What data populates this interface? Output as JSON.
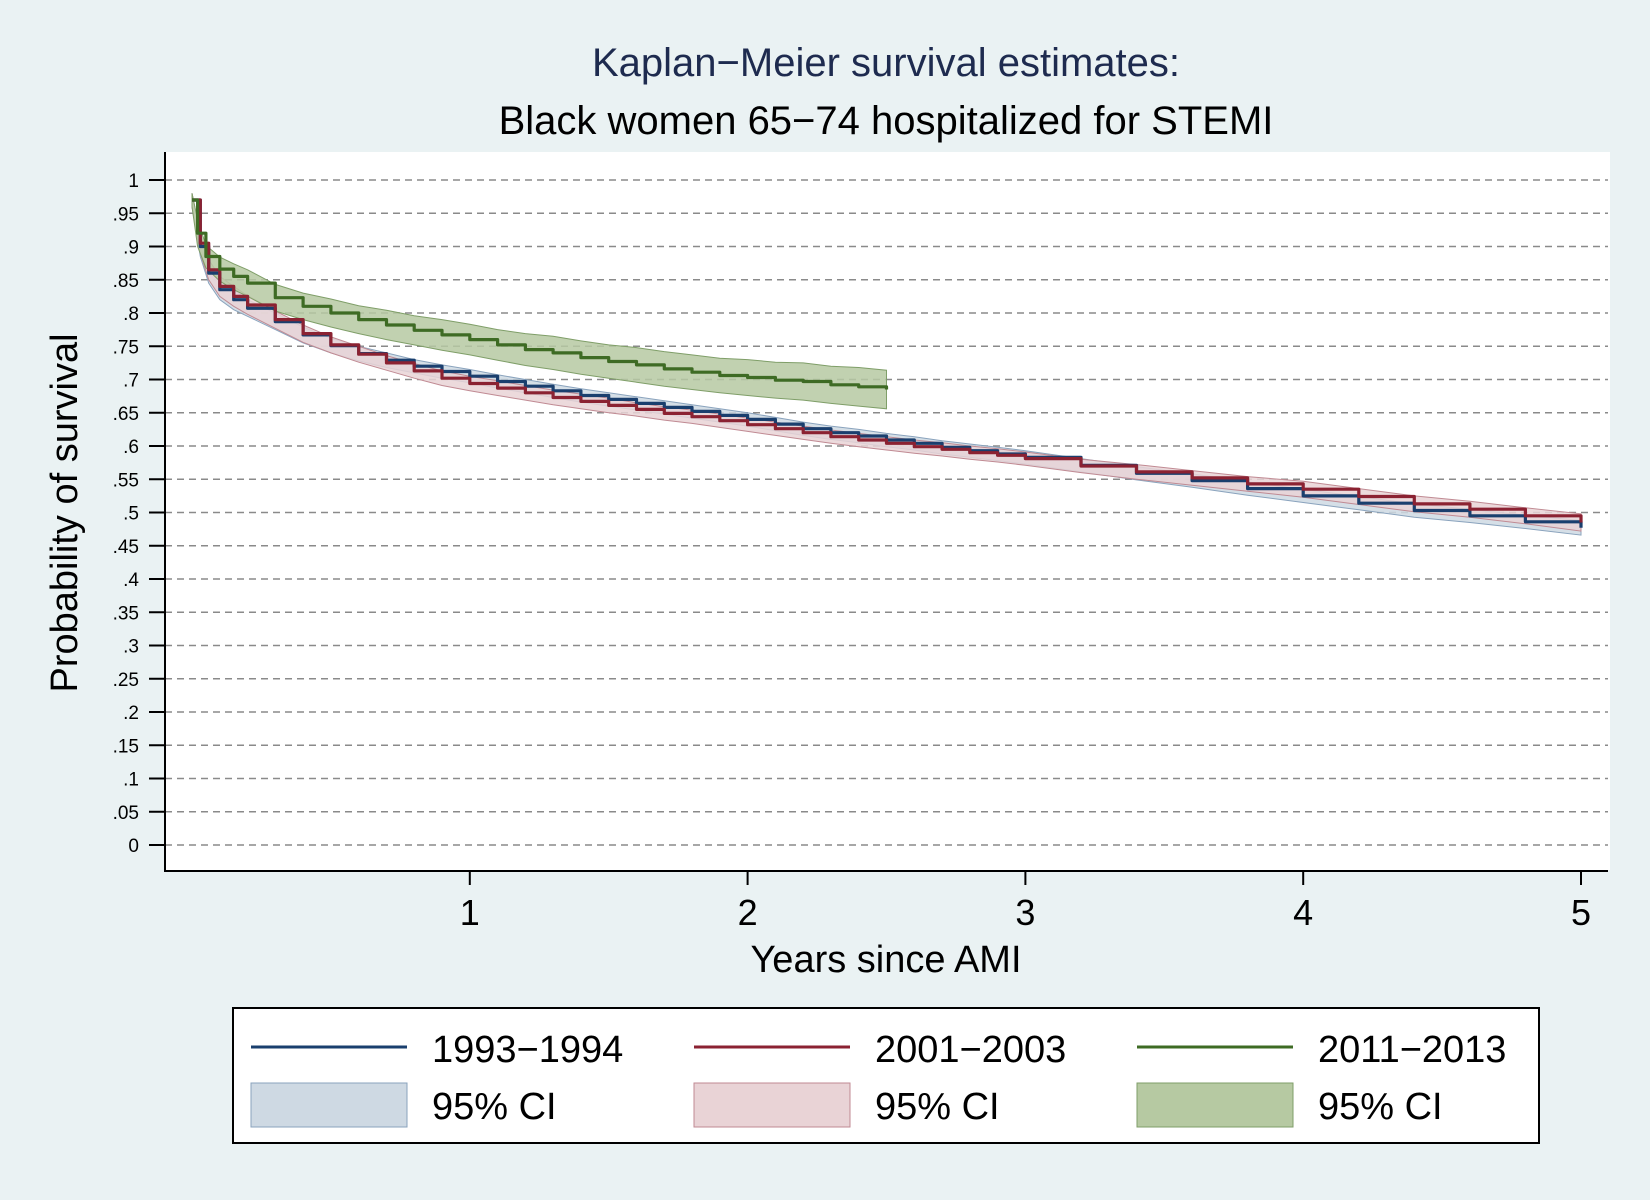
{
  "chart_data": {
    "type": "line",
    "title": "Kaplan−Meier survival estimates:",
    "subtitle": "Black women 65−74 hospitalized for STEMI",
    "xlabel": "Years since AMI",
    "ylabel": "Probability of survival",
    "xlim": [
      0,
      5
    ],
    "ylim": [
      0,
      1
    ],
    "x_ticks": [
      "1",
      "2",
      "3",
      "4",
      "5"
    ],
    "x_tick_values": [
      1,
      2,
      3,
      4,
      5
    ],
    "y_ticks": [
      "0",
      ".05",
      ".1",
      ".15",
      ".2",
      ".25",
      ".3",
      ".35",
      ".4",
      ".45",
      ".5",
      ".55",
      ".6",
      ".65",
      ".7",
      ".75",
      ".8",
      ".85",
      ".9",
      ".95",
      "1"
    ],
    "y_tick_values": [
      0,
      0.05,
      0.1,
      0.15,
      0.2,
      0.25,
      0.3,
      0.35,
      0.4,
      0.45,
      0.5,
      0.55,
      0.6,
      0.65,
      0.7,
      0.75,
      0.8,
      0.85,
      0.9,
      0.95,
      1
    ],
    "grid": "horizontal dashed",
    "legend_position": "bottom",
    "series": [
      {
        "name": "1993−1994",
        "color": "#1a3f6e",
        "ci_fill": "#ced9e3",
        "ci_stroke": "#8aa3bd",
        "x": [
          0.0,
          0.03,
          0.06,
          0.1,
          0.15,
          0.2,
          0.3,
          0.4,
          0.5,
          0.6,
          0.7,
          0.8,
          0.9,
          1.0,
          1.1,
          1.2,
          1.3,
          1.4,
          1.5,
          1.6,
          1.7,
          1.8,
          1.9,
          2.0,
          2.1,
          2.2,
          2.3,
          2.4,
          2.5,
          2.6,
          2.7,
          2.8,
          2.9,
          3.0,
          3.2,
          3.4,
          3.6,
          3.8,
          4.0,
          4.2,
          4.4,
          4.6,
          4.8,
          5.0
        ],
        "y": [
          0.97,
          0.9,
          0.86,
          0.835,
          0.82,
          0.807,
          0.787,
          0.767,
          0.751,
          0.739,
          0.729,
          0.72,
          0.712,
          0.705,
          0.697,
          0.69,
          0.683,
          0.676,
          0.67,
          0.664,
          0.658,
          0.652,
          0.646,
          0.64,
          0.633,
          0.626,
          0.62,
          0.615,
          0.609,
          0.604,
          0.598,
          0.593,
          0.588,
          0.583,
          0.571,
          0.559,
          0.548,
          0.536,
          0.525,
          0.514,
          0.503,
          0.495,
          0.486,
          0.477
        ],
        "ci_lower": [
          0.96,
          0.885,
          0.845,
          0.82,
          0.805,
          0.795,
          0.775,
          0.755,
          0.74,
          0.728,
          0.718,
          0.71,
          0.702,
          0.695,
          0.687,
          0.68,
          0.673,
          0.666,
          0.66,
          0.654,
          0.648,
          0.642,
          0.636,
          0.63,
          0.623,
          0.616,
          0.61,
          0.605,
          0.599,
          0.594,
          0.588,
          0.583,
          0.578,
          0.573,
          0.561,
          0.549,
          0.538,
          0.526,
          0.515,
          0.504,
          0.493,
          0.485,
          0.476,
          0.466
        ],
        "ci_upper": [
          0.98,
          0.915,
          0.875,
          0.85,
          0.835,
          0.82,
          0.8,
          0.779,
          0.762,
          0.75,
          0.74,
          0.73,
          0.722,
          0.715,
          0.707,
          0.7,
          0.693,
          0.686,
          0.68,
          0.674,
          0.668,
          0.662,
          0.656,
          0.65,
          0.643,
          0.636,
          0.63,
          0.625,
          0.619,
          0.614,
          0.608,
          0.603,
          0.598,
          0.593,
          0.581,
          0.569,
          0.558,
          0.546,
          0.535,
          0.524,
          0.513,
          0.505,
          0.496,
          0.488
        ]
      },
      {
        "name": "2001−2003",
        "color": "#8b2232",
        "ci_fill": "#e9d3d6",
        "ci_stroke": "#c08a93",
        "x": [
          0.0,
          0.03,
          0.06,
          0.1,
          0.15,
          0.2,
          0.3,
          0.4,
          0.5,
          0.6,
          0.7,
          0.8,
          0.9,
          1.0,
          1.1,
          1.2,
          1.3,
          1.4,
          1.5,
          1.6,
          1.7,
          1.8,
          1.9,
          2.0,
          2.1,
          2.2,
          2.3,
          2.4,
          2.5,
          2.6,
          2.7,
          2.8,
          2.9,
          3.0,
          3.2,
          3.4,
          3.6,
          3.8,
          4.0,
          4.2,
          4.4,
          4.6,
          4.8,
          5.0
        ],
        "y": [
          0.97,
          0.905,
          0.865,
          0.84,
          0.825,
          0.812,
          0.79,
          0.769,
          0.752,
          0.738,
          0.725,
          0.713,
          0.702,
          0.694,
          0.687,
          0.68,
          0.673,
          0.667,
          0.661,
          0.655,
          0.649,
          0.644,
          0.638,
          0.632,
          0.626,
          0.62,
          0.614,
          0.609,
          0.604,
          0.599,
          0.595,
          0.59,
          0.586,
          0.581,
          0.57,
          0.561,
          0.552,
          0.543,
          0.535,
          0.524,
          0.513,
          0.505,
          0.495,
          0.485
        ],
        "ci_lower": [
          0.96,
          0.89,
          0.85,
          0.825,
          0.81,
          0.798,
          0.777,
          0.756,
          0.74,
          0.726,
          0.714,
          0.702,
          0.691,
          0.683,
          0.676,
          0.669,
          0.662,
          0.656,
          0.65,
          0.645,
          0.639,
          0.634,
          0.628,
          0.622,
          0.616,
          0.61,
          0.604,
          0.599,
          0.594,
          0.589,
          0.585,
          0.58,
          0.576,
          0.571,
          0.56,
          0.55,
          0.541,
          0.532,
          0.523,
          0.512,
          0.501,
          0.493,
          0.483,
          0.472
        ],
        "ci_upper": [
          0.98,
          0.92,
          0.88,
          0.855,
          0.84,
          0.826,
          0.803,
          0.782,
          0.764,
          0.75,
          0.736,
          0.724,
          0.713,
          0.705,
          0.698,
          0.691,
          0.684,
          0.678,
          0.672,
          0.665,
          0.659,
          0.654,
          0.648,
          0.642,
          0.636,
          0.63,
          0.624,
          0.619,
          0.614,
          0.609,
          0.605,
          0.6,
          0.596,
          0.591,
          0.58,
          0.572,
          0.563,
          0.554,
          0.547,
          0.536,
          0.525,
          0.517,
          0.507,
          0.498
        ]
      },
      {
        "name": "2011−2013",
        "color": "#3e6b24",
        "ci_fill": "#b6c9a2",
        "ci_stroke": "#7f9e68",
        "x": [
          0.0,
          0.02,
          0.05,
          0.1,
          0.15,
          0.2,
          0.3,
          0.4,
          0.5,
          0.6,
          0.7,
          0.8,
          0.9,
          1.0,
          1.1,
          1.2,
          1.3,
          1.4,
          1.5,
          1.6,
          1.7,
          1.8,
          1.9,
          2.0,
          2.1,
          2.2,
          2.3,
          2.4,
          2.5
        ],
        "y": [
          0.97,
          0.92,
          0.885,
          0.866,
          0.855,
          0.845,
          0.823,
          0.81,
          0.8,
          0.79,
          0.782,
          0.774,
          0.767,
          0.76,
          0.752,
          0.745,
          0.74,
          0.733,
          0.727,
          0.722,
          0.716,
          0.711,
          0.706,
          0.703,
          0.699,
          0.697,
          0.692,
          0.689,
          0.685
        ],
        "ci_lower": [
          0.96,
          0.9,
          0.868,
          0.848,
          0.835,
          0.825,
          0.803,
          0.79,
          0.779,
          0.769,
          0.76,
          0.752,
          0.744,
          0.737,
          0.729,
          0.721,
          0.715,
          0.708,
          0.702,
          0.696,
          0.69,
          0.685,
          0.68,
          0.676,
          0.672,
          0.669,
          0.664,
          0.66,
          0.656
        ],
        "ci_upper": [
          0.98,
          0.94,
          0.902,
          0.884,
          0.874,
          0.865,
          0.843,
          0.83,
          0.821,
          0.811,
          0.804,
          0.796,
          0.79,
          0.783,
          0.775,
          0.769,
          0.765,
          0.758,
          0.752,
          0.748,
          0.742,
          0.737,
          0.732,
          0.73,
          0.726,
          0.725,
          0.72,
          0.718,
          0.714
        ]
      }
    ],
    "legend_ci_label": "95% CI",
    "colors": {
      "background": "#eaf2f3",
      "plot_background": "#ffffff",
      "title": "#1e2b4f",
      "grid": "#8a8a8a"
    }
  }
}
